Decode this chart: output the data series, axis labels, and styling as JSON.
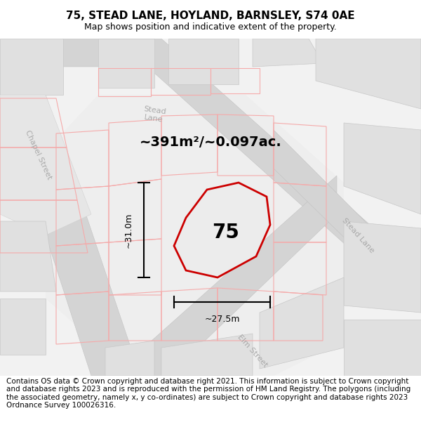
{
  "title": "75, STEAD LANE, HOYLAND, BARNSLEY, S74 0AE",
  "subtitle": "Map shows position and indicative extent of the property.",
  "footer": "Contains OS data © Crown copyright and database right 2021. This information is subject to Crown copyright and database rights 2023 and is reproduced with the permission of HM Land Registry. The polygons (including the associated geometry, namely x, y co-ordinates) are subject to Crown copyright and database rights 2023 Ordnance Survey 100026316.",
  "area_label": "~391m²/~0.097ac.",
  "width_label": "~27.5m",
  "height_label": "~31.0m",
  "property_number": "75",
  "red_line_color": "#cc0000",
  "faint_red": "#f5aaaa",
  "road_fill": "#d8d8d8",
  "block_fill": "#e8e8e8",
  "block_stroke": "#cccccc",
  "map_bg": "#efefef",
  "white": "#ffffff",
  "property_fill": "#ececec",
  "street_color": "#aaaaaa",
  "title_fontsize": 11,
  "subtitle_fontsize": 9,
  "footer_fontsize": 7.5,
  "property_polygon_x": [
    295,
    315,
    355,
    375,
    365,
    340,
    295,
    270,
    275
  ],
  "property_polygon_y": [
    255,
    220,
    215,
    235,
    275,
    305,
    315,
    300,
    270
  ]
}
